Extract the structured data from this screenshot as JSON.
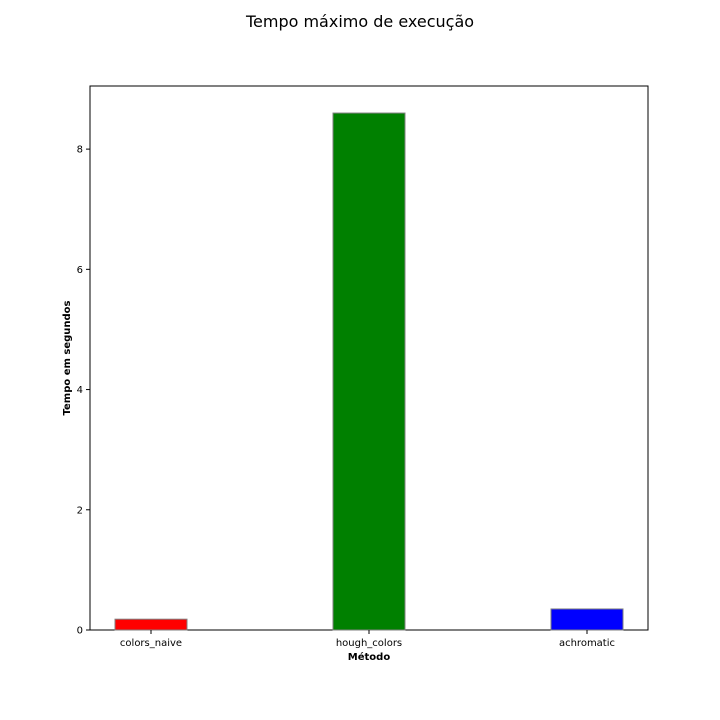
{
  "chart_data": {
    "type": "bar",
    "title": "Tempo máximo de execução",
    "xlabel": "Método",
    "ylabel": "Tempo em segundos",
    "categories": [
      "colors_naive",
      "hough_colors",
      "achromatic"
    ],
    "values": [
      0.18,
      8.6,
      0.35
    ],
    "colors": [
      "#ff0000",
      "#008000",
      "#0000ff"
    ],
    "edge_color": "#7f7f7f",
    "ylim": [
      0,
      9.05
    ],
    "yticks": [
      0,
      2,
      4,
      6,
      8
    ],
    "grid": false,
    "legend": false
  }
}
